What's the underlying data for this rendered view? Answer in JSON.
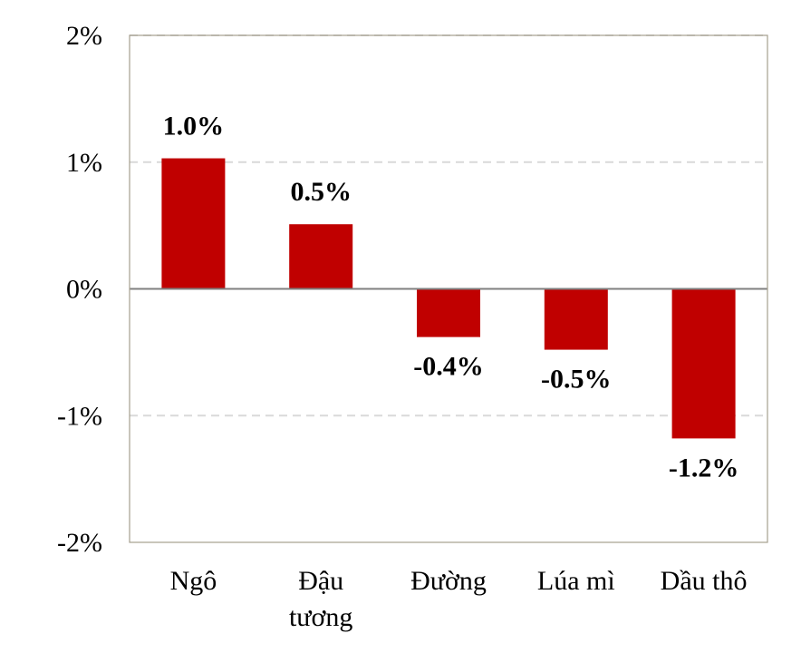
{
  "chart_data": {
    "type": "bar",
    "categories": [
      [
        "Ngô"
      ],
      [
        "Đậu",
        "tương"
      ],
      [
        "Đường"
      ],
      [
        "Lúa mì"
      ],
      [
        "Dầu thô"
      ]
    ],
    "values": [
      1.03,
      0.51,
      -0.38,
      -0.48,
      -1.18
    ],
    "data_labels": [
      "1.0%",
      "0.5%",
      "-0.4%",
      "-0.5%",
      "-1.2%"
    ],
    "ylim": [
      -2,
      2
    ],
    "yticks": [
      2,
      1,
      0,
      -1,
      -2
    ],
    "ytick_labels": [
      "2%",
      "1%",
      "0%",
      "-1%",
      "-2%"
    ],
    "title": "",
    "xlabel": "",
    "ylabel": "",
    "grid": "horizontal dashed",
    "bar_color": "#C00000",
    "grid_color": "#D9D9D9",
    "axis_color": "#808080",
    "frame_color": "#A59F8E"
  }
}
